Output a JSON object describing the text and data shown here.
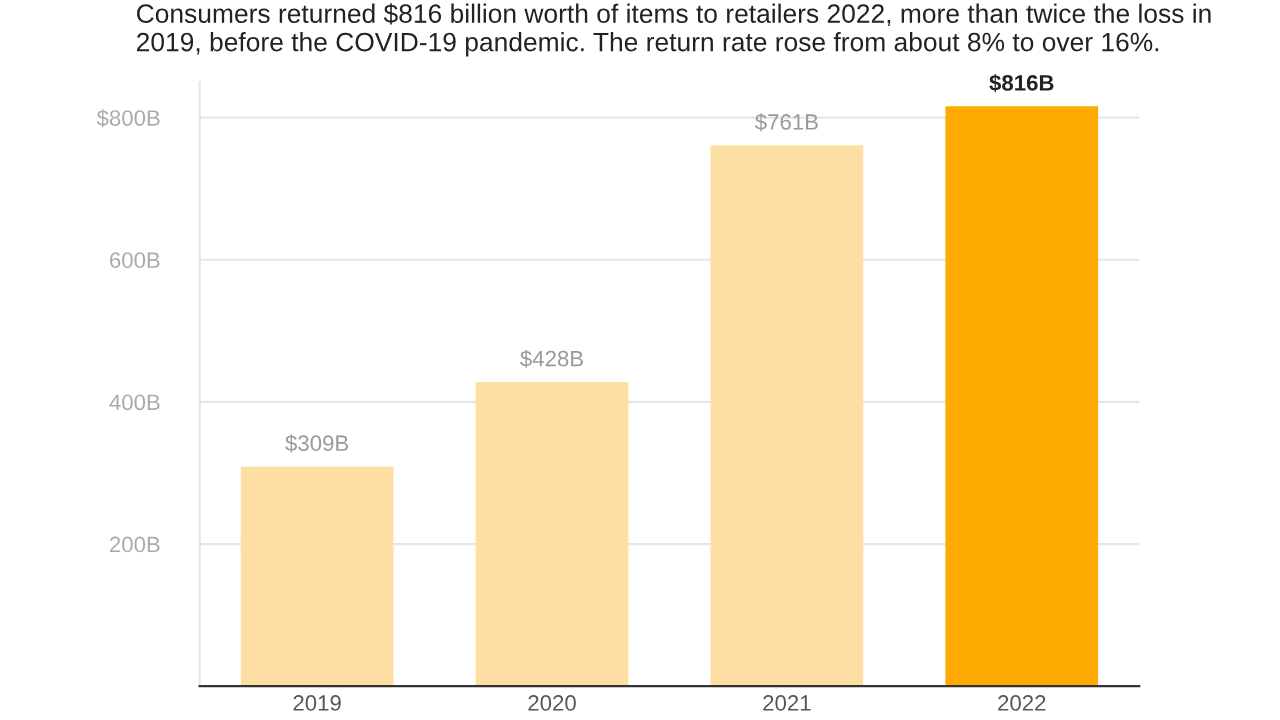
{
  "chart_data": {
    "type": "bar",
    "title": "Consumers returned $816 billion worth of items to retailers 2022, more than twice the loss in 2019, before the COVID-19 pandemic. The return rate rose from about 8% to over 16%.",
    "categories": [
      "2019",
      "2020",
      "2021",
      "2022"
    ],
    "values": [
      309,
      428,
      761,
      816
    ],
    "colors": [
      "#fddfa4",
      "#fddfa4",
      "#fddfa4",
      "#ffaa00"
    ],
    "value_labels": [
      "$309B",
      "$428B",
      "$761B",
      "$816B"
    ],
    "ylim": [
      0,
      850
    ],
    "yticks": [
      {
        "value": 200,
        "label": "200B"
      },
      {
        "value": 400,
        "label": "400B"
      },
      {
        "value": 600,
        "label": "600B"
      },
      {
        "value": 800,
        "label": "$800B"
      }
    ],
    "grid": "y"
  }
}
